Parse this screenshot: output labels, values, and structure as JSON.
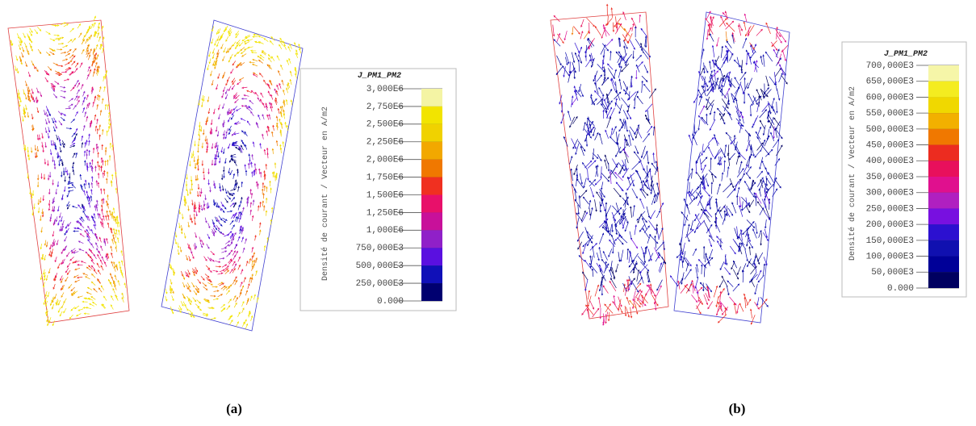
{
  "panels": [
    {
      "caption": "(a)",
      "legend": {
        "title": "J_PM1_PM2",
        "axis_label": "Densité de courant / Vecteur en A/m2",
        "levels": [
          "3,000E6",
          "2,750E6",
          "2,500E6",
          "2,250E6",
          "2,000E6",
          "1,750E6",
          "1,500E6",
          "1,250E6",
          "1,000E6",
          "750,000E3",
          "500,000E3",
          "250,000E3",
          "0.000"
        ],
        "colors": [
          "#f4f4a4",
          "#f2e400",
          "#f0d200",
          "#f2a800",
          "#f07800",
          "#f03020",
          "#e8106a",
          "#c8109a",
          "#9020c8",
          "#5a10e0",
          "#1010b8",
          "#000070"
        ]
      }
    },
    {
      "caption": "(b)",
      "legend": {
        "title": "J_PM1_PM2",
        "axis_label": "Densité de courant / Vecteur en A/m2",
        "levels": [
          "700,000E3",
          "650,000E3",
          "600,000E3",
          "550,000E3",
          "500,000E3",
          "450,000E3",
          "400,000E3",
          "350,000E3",
          "300,000E3",
          "250,000E3",
          "200,000E3",
          "150,000E3",
          "100,000E3",
          "50,000E3",
          "0.000"
        ],
        "colors": [
          "#f6f6a8",
          "#f4ec20",
          "#f0d800",
          "#f2b000",
          "#f07800",
          "#ec2c20",
          "#e8105c",
          "#e0108e",
          "#b020c0",
          "#7810e0",
          "#2c10d0",
          "#1010b0",
          "#000098",
          "#000060"
        ]
      }
    }
  ]
}
